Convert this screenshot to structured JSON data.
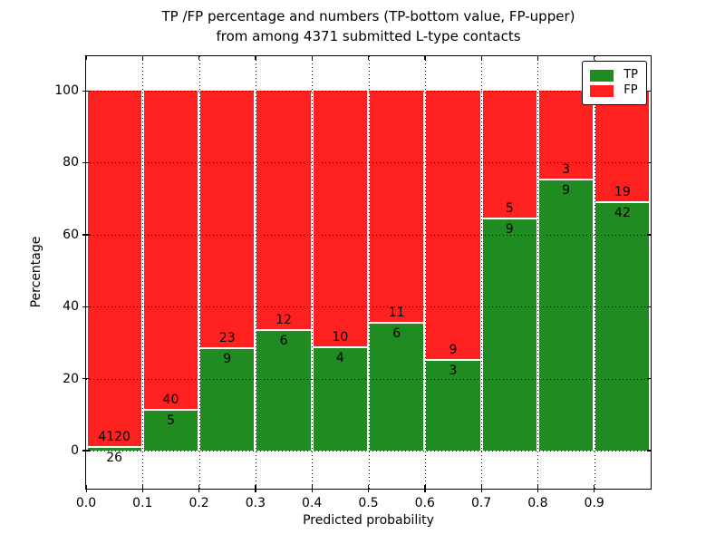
{
  "figure": {
    "title_line1": "TP /FP percentage and numbers (TP-bottom value, FP-upper)",
    "title_line2": "from among 4371 submitted L-type contacts"
  },
  "legend": {
    "position": "upper right",
    "items": [
      {
        "label": "TP",
        "color": "#208b20"
      },
      {
        "label": "FP",
        "color": "#ff2020"
      }
    ]
  },
  "chart_data": {
    "type": "bar",
    "stacked": true,
    "title": "TP /FP percentage and numbers (TP-bottom value, FP-upper) from among 4371 submitted L-type contacts",
    "xlabel": "Predicted probability",
    "ylabel": "Percentage",
    "total_submitted_contacts": 4371,
    "bin_edges": [
      0.0,
      0.1,
      0.2,
      0.3,
      0.4,
      0.5,
      0.6,
      0.7,
      0.8,
      0.9,
      1.0
    ],
    "categories": [
      "0.0-0.1",
      "0.1-0.2",
      "0.2-0.3",
      "0.3-0.4",
      "0.4-0.5",
      "0.5-0.6",
      "0.6-0.7",
      "0.7-0.8",
      "0.8-0.9",
      "0.9-1.0"
    ],
    "xticks": [
      "0.0",
      "0.1",
      "0.2",
      "0.3",
      "0.4",
      "0.5",
      "0.6",
      "0.7",
      "0.8",
      "0.9"
    ],
    "yticks": [
      0,
      20,
      40,
      60,
      80,
      100
    ],
    "xlim": [
      0.0,
      1.0
    ],
    "ylim": [
      -10.6,
      109.6
    ],
    "grid": "dotted",
    "legend_position": "upper right",
    "series": [
      {
        "name": "TP",
        "color": "#208b20",
        "counts": [
          26,
          5,
          9,
          6,
          4,
          6,
          3,
          9,
          9,
          42
        ],
        "percent": [
          0.63,
          11.11,
          28.13,
          33.33,
          28.57,
          35.29,
          25.0,
          64.29,
          75.0,
          68.85
        ]
      },
      {
        "name": "FP",
        "color": "#ff2020",
        "counts": [
          4120,
          40,
          23,
          12,
          10,
          11,
          9,
          5,
          3,
          19
        ],
        "percent": [
          99.37,
          88.89,
          71.87,
          66.67,
          71.43,
          64.71,
          75.0,
          35.71,
          25.0,
          31.15
        ]
      }
    ]
  }
}
